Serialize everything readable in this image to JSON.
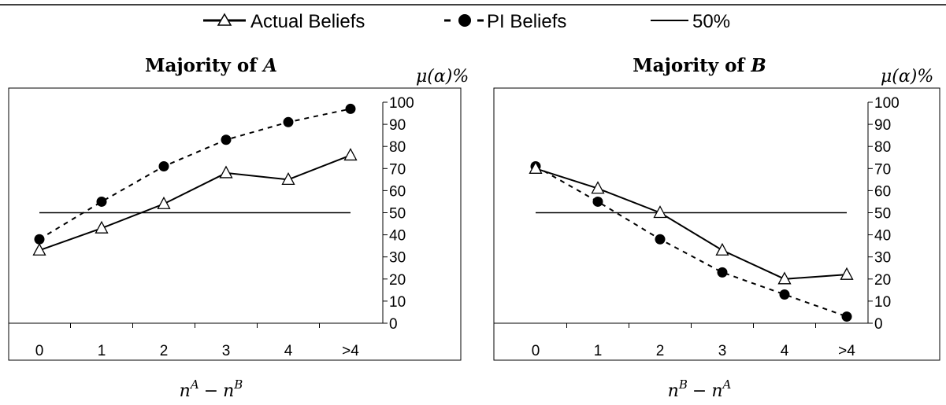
{
  "legend": {
    "items": [
      {
        "label": "Actual Beliefs",
        "style": "solid-triangle"
      },
      {
        "label": "PI Beliefs",
        "style": "dashed-dot"
      },
      {
        "label": "50%",
        "style": "solid-plain"
      }
    ]
  },
  "chart_data": [
    {
      "type": "line",
      "title": "Majority of A",
      "title_prefix": "Majority of ",
      "title_var": "A",
      "ylabel": "μ(α)%",
      "xlabel": "n^A − n^B",
      "xlabel_base1": "n",
      "xlabel_sup1": "A",
      "xlabel_op": "−",
      "xlabel_base2": "n",
      "xlabel_sup2": "B",
      "categories": [
        "0",
        "1",
        "2",
        "3",
        "4",
        ">4"
      ],
      "yticks": [
        "0",
        "10",
        "20",
        "30",
        "40",
        "50",
        "60",
        "70",
        "80",
        "90",
        "100"
      ],
      "ylim": [
        0,
        100
      ],
      "series": [
        {
          "name": "Actual Beliefs",
          "values": [
            33,
            43,
            54,
            68,
            65,
            76
          ],
          "marker": "triangle",
          "dash": false
        },
        {
          "name": "PI Beliefs",
          "values": [
            38,
            55,
            71,
            83,
            91,
            97
          ],
          "marker": "circle",
          "dash": true
        },
        {
          "name": "50%",
          "values": [
            50,
            50,
            50,
            50,
            50,
            50
          ],
          "marker": "none",
          "dash": false
        }
      ]
    },
    {
      "type": "line",
      "title": "Majority of B",
      "title_prefix": "Majority of ",
      "title_var": "B",
      "ylabel": "μ(α)%",
      "xlabel": "n^B − n^A",
      "xlabel_base1": "n",
      "xlabel_sup1": "B",
      "xlabel_op": "−",
      "xlabel_base2": "n",
      "xlabel_sup2": "A",
      "categories": [
        "0",
        "1",
        "2",
        "3",
        "4",
        ">4"
      ],
      "yticks": [
        "0",
        "10",
        "20",
        "30",
        "40",
        "50",
        "60",
        "70",
        "80",
        "90",
        "100"
      ],
      "ylim": [
        0,
        100
      ],
      "series": [
        {
          "name": "Actual Beliefs",
          "values": [
            70,
            61,
            50,
            33,
            20,
            22
          ],
          "marker": "triangle",
          "dash": false
        },
        {
          "name": "PI Beliefs",
          "values": [
            71,
            55,
            38,
            23,
            13,
            3
          ],
          "marker": "circle",
          "dash": true
        },
        {
          "name": "50%",
          "values": [
            50,
            50,
            50,
            50,
            50,
            50
          ],
          "marker": "none",
          "dash": false
        }
      ]
    }
  ]
}
